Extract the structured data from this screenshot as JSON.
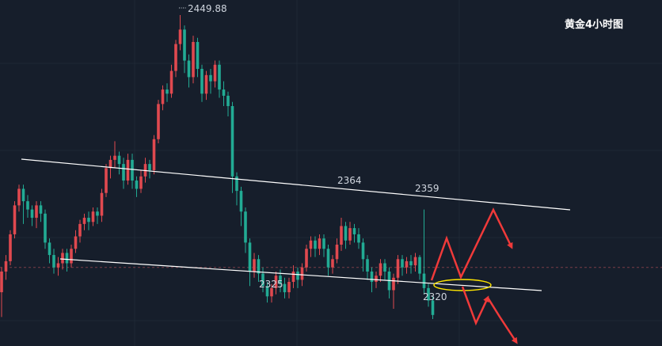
{
  "chart_data": {
    "type": "candlestick",
    "title": "黄金4小时图",
    "colors": {
      "up": "#e0494f",
      "down": "#22ab94",
      "line": "#ffffff",
      "arrow": "#f03a3a",
      "ellipse": "#ffe600",
      "background": "#161e2b",
      "grid": "#1f2836",
      "ref": "#7a3d48"
    },
    "ylim": [
      2290,
      2455
    ],
    "ref_level": 2328,
    "candles": [
      [
        2316,
        2326,
        2304,
        2328
      ],
      [
        2326,
        2331,
        2322,
        2334
      ],
      [
        2331,
        2344,
        2329,
        2346
      ],
      [
        2344,
        2358,
        2342,
        2360
      ],
      [
        2358,
        2366,
        2355,
        2368
      ],
      [
        2366,
        2360,
        2349,
        2368
      ],
      [
        2360,
        2356,
        2352,
        2363
      ],
      [
        2356,
        2352,
        2348,
        2358
      ],
      [
        2352,
        2358,
        2347,
        2360
      ],
      [
        2358,
        2354,
        2350,
        2360
      ],
      [
        2354,
        2340,
        2337,
        2356
      ],
      [
        2340,
        2334,
        2330,
        2342
      ],
      [
        2334,
        2328,
        2325,
        2337
      ],
      [
        2328,
        2330,
        2324,
        2333
      ],
      [
        2330,
        2335,
        2327,
        2337
      ],
      [
        2335,
        2330,
        2326,
        2337
      ],
      [
        2330,
        2337,
        2328,
        2339
      ],
      [
        2337,
        2343,
        2335,
        2346
      ],
      [
        2343,
        2349,
        2340,
        2351
      ],
      [
        2349,
        2352,
        2346,
        2354
      ],
      [
        2352,
        2350,
        2346,
        2355
      ],
      [
        2350,
        2355,
        2348,
        2357
      ],
      [
        2355,
        2353,
        2349,
        2357
      ],
      [
        2353,
        2364,
        2350,
        2366
      ],
      [
        2364,
        2376,
        2362,
        2378
      ],
      [
        2376,
        2380,
        2371,
        2382
      ],
      [
        2380,
        2382,
        2376,
        2389
      ],
      [
        2382,
        2378,
        2373,
        2384
      ],
      [
        2378,
        2370,
        2366,
        2381
      ],
      [
        2370,
        2380,
        2368,
        2383
      ],
      [
        2380,
        2370,
        2366,
        2383
      ],
      [
        2370,
        2366,
        2362,
        2372
      ],
      [
        2366,
        2372,
        2364,
        2375
      ],
      [
        2372,
        2378,
        2369,
        2381
      ],
      [
        2378,
        2375,
        2371,
        2380
      ],
      [
        2375,
        2390,
        2373,
        2392
      ],
      [
        2390,
        2407,
        2388,
        2409
      ],
      [
        2407,
        2414,
        2404,
        2416
      ],
      [
        2414,
        2412,
        2408,
        2417
      ],
      [
        2412,
        2423,
        2410,
        2426
      ],
      [
        2423,
        2436,
        2420,
        2438
      ],
      [
        2436,
        2443,
        2433,
        2450
      ],
      [
        2443,
        2428,
        2422,
        2445
      ],
      [
        2428,
        2420,
        2415,
        2431
      ],
      [
        2420,
        2437,
        2417,
        2440
      ],
      [
        2437,
        2424,
        2420,
        2439
      ],
      [
        2424,
        2412,
        2408,
        2426
      ],
      [
        2412,
        2421,
        2409,
        2423
      ],
      [
        2421,
        2418,
        2412,
        2424
      ],
      [
        2418,
        2426,
        2415,
        2428
      ],
      [
        2426,
        2414,
        2410,
        2428
      ],
      [
        2414,
        2411,
        2406,
        2418
      ],
      [
        2411,
        2406,
        2401,
        2413
      ],
      [
        2406,
        2372,
        2364,
        2408
      ],
      [
        2372,
        2365,
        2358,
        2374
      ],
      [
        2365,
        2355,
        2348,
        2367
      ],
      [
        2355,
        2340,
        2335,
        2357
      ],
      [
        2340,
        2326,
        2319,
        2342
      ],
      [
        2326,
        2332,
        2323,
        2335
      ],
      [
        2332,
        2325,
        2321,
        2334
      ],
      [
        2325,
        2319,
        2316,
        2328
      ],
      [
        2319,
        2314,
        2311,
        2321
      ],
      [
        2314,
        2318,
        2311,
        2320
      ],
      [
        2318,
        2324,
        2315,
        2326
      ],
      [
        2324,
        2320,
        2316,
        2327
      ],
      [
        2320,
        2316,
        2313,
        2323
      ],
      [
        2316,
        2321,
        2313,
        2323
      ],
      [
        2321,
        2326,
        2318,
        2329
      ],
      [
        2326,
        2322,
        2318,
        2328
      ],
      [
        2322,
        2328,
        2319,
        2330
      ],
      [
        2328,
        2337,
        2326,
        2339
      ],
      [
        2337,
        2341,
        2333,
        2343
      ],
      [
        2341,
        2337,
        2333,
        2343
      ],
      [
        2337,
        2342,
        2334,
        2344
      ],
      [
        2342,
        2337,
        2333,
        2344
      ],
      [
        2337,
        2328,
        2324,
        2339
      ],
      [
        2328,
        2332,
        2325,
        2334
      ],
      [
        2332,
        2339,
        2330,
        2342
      ],
      [
        2339,
        2348,
        2336,
        2352
      ],
      [
        2348,
        2341,
        2337,
        2350
      ],
      [
        2341,
        2347,
        2339,
        2350
      ],
      [
        2347,
        2344,
        2340,
        2349
      ],
      [
        2344,
        2340,
        2337,
        2347
      ],
      [
        2340,
        2332,
        2326,
        2342
      ],
      [
        2332,
        2326,
        2322,
        2334
      ],
      [
        2326,
        2321,
        2316,
        2328
      ],
      [
        2321,
        2324,
        2318,
        2326
      ],
      [
        2324,
        2330,
        2321,
        2332
      ],
      [
        2330,
        2326,
        2322,
        2332
      ],
      [
        2326,
        2317,
        2313,
        2328
      ],
      [
        2317,
        2323,
        2308,
        2325
      ],
      [
        2323,
        2332,
        2320,
        2334
      ],
      [
        2332,
        2328,
        2324,
        2334
      ],
      [
        2328,
        2331,
        2325,
        2333
      ],
      [
        2331,
        2329,
        2325,
        2334
      ],
      [
        2329,
        2333,
        2326,
        2335
      ],
      [
        2333,
        2325,
        2322,
        2334
      ],
      [
        2325,
        2318,
        2315,
        2356
      ],
      [
        2318,
        2312,
        2309,
        2320
      ],
      [
        2312,
        2305,
        2303,
        2314
      ]
    ],
    "labels": [
      {
        "text": "2449.88",
        "value": 2449.88
      },
      {
        "text": "2364",
        "value": 2364
      },
      {
        "text": "2359",
        "value": 2359
      },
      {
        "text": "2325",
        "value": 2325
      },
      {
        "text": "2320",
        "value": 2320
      }
    ]
  }
}
